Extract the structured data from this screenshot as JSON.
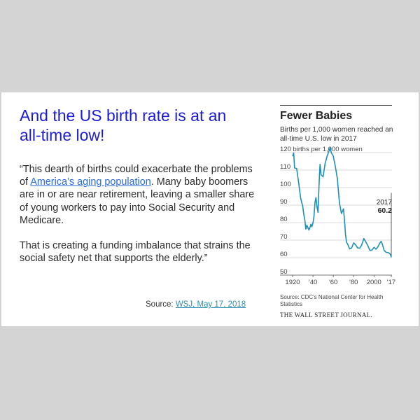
{
  "slide": {
    "title": "And the US birth rate is at an all-time low!",
    "quote_part1": "“This dearth of births could exacerbate the problems of ",
    "quote_link": "America’s aging population",
    "quote_part2": ". Many baby boomers are in or are near retirement, leaving a smaller share of young workers to pay into Social Security and Medicare.",
    "quote_para2": "That is creating  a funding imbalance that strains the social safety net that supports the elderly.”",
    "source_label": "Source: ",
    "source_link": "WSJ, May 17, 2018"
  },
  "wsj": {
    "headline": "Fewer Babies",
    "subhead": "Births per 1,000 women reached an all-time U.S. low in 2017",
    "credit": "Source: CDC's National Center for Health Statistics",
    "brand": "THE WALL STREET JOURNAL."
  },
  "chart_data": {
    "type": "line",
    "title": "Fewer Babies",
    "subtitle": "Births per 1,000 women reached an all-time U.S. low in 2017",
    "ylabel": "births per 1,000 women",
    "xlim": [
      1920,
      2017
    ],
    "ylim": [
      50,
      120
    ],
    "y_ticks": [
      50,
      60,
      70,
      80,
      90,
      100,
      110,
      120
    ],
    "y_tick_labels": [
      "50",
      "60",
      "70",
      "80",
      "90",
      "100",
      "110",
      "120 births per 1,000 women"
    ],
    "x_ticks": [
      1920,
      1940,
      1960,
      1980,
      2000,
      2017
    ],
    "x_tick_labels": [
      "1920",
      "'40",
      "'60",
      "'80",
      "2000",
      "'17"
    ],
    "grid": "horizontal",
    "line_color": "#1f8fb5",
    "annotation": {
      "year_label": "2017",
      "value_label": "60.2",
      "x": 2017,
      "y": 60.2
    },
    "series": [
      {
        "x": [
          1920,
          1921,
          1922,
          1924,
          1926,
          1928,
          1930,
          1931,
          1932,
          1933,
          1934,
          1935,
          1936,
          1937,
          1938,
          1939,
          1940,
          1941,
          1942,
          1943,
          1944,
          1945,
          1946,
          1947,
          1948,
          1950,
          1952,
          1954,
          1956,
          1957,
          1958,
          1960,
          1962,
          1964,
          1966,
          1968,
          1970,
          1971,
          1972,
          1973,
          1974,
          1976,
          1978,
          1980,
          1982,
          1984,
          1986,
          1988,
          1990,
          1992,
          1994,
          1996,
          1998,
          2000,
          2002,
          2004,
          2006,
          2007,
          2008,
          2010,
          2012,
          2014,
          2016,
          2017
        ],
        "y": [
          117.9,
          119.8,
          111.2,
          110.9,
          102.6,
          93.8,
          89.2,
          84.6,
          81.7,
          76.3,
          78.5,
          77.2,
          75.8,
          77.1,
          79.1,
          77.6,
          79.9,
          83.4,
          91.5,
          94.3,
          88.8,
          85.9,
          101.9,
          113.3,
          107.3,
          106.2,
          113.9,
          118.1,
          121.2,
          122.9,
          120.0,
          118.0,
          112.0,
          105.0,
          91.3,
          85.2,
          87.9,
          81.6,
          73.1,
          68.8,
          67.8,
          65.0,
          65.5,
          68.4,
          67.3,
          65.5,
          65.4,
          67.3,
          70.9,
          68.9,
          66.7,
          64.1,
          64.3,
          65.9,
          64.8,
          66.3,
          68.6,
          69.3,
          68.1,
          64.1,
          63.0,
          62.9,
          62.0,
          60.2
        ]
      }
    ]
  }
}
